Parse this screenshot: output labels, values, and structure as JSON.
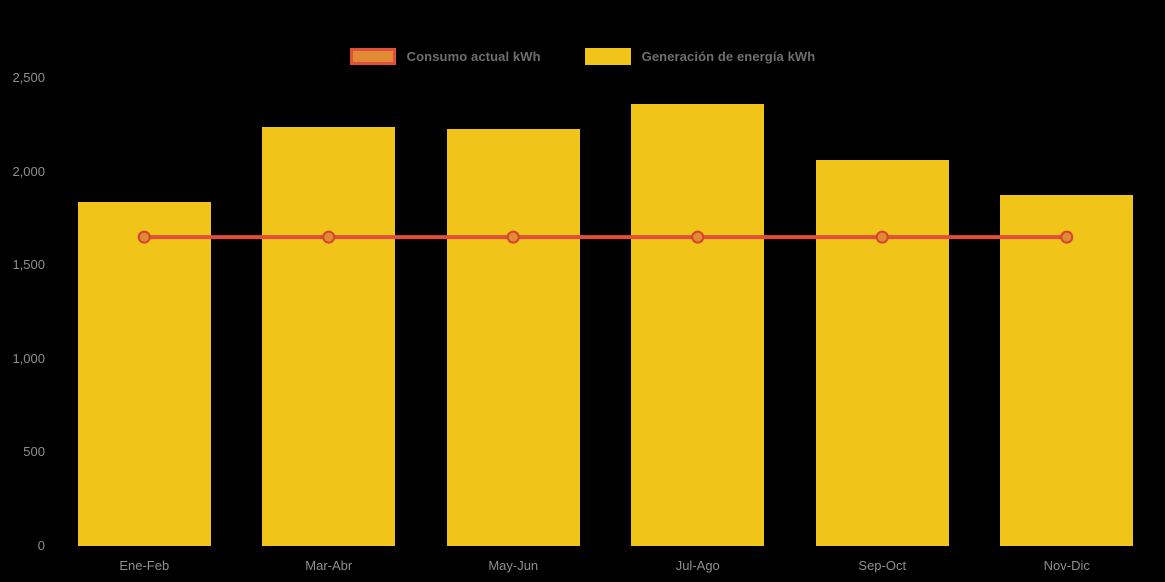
{
  "chart_data": {
    "type": "bar",
    "title": "",
    "categories": [
      "Ene-Feb",
      "Mar-Abr",
      "May-Jun",
      "Jul-Ago",
      "Sep-Oct",
      "Nov-Dic"
    ],
    "series": [
      {
        "name": "Consumo actual kWh",
        "type": "line",
        "values": [
          1650,
          1650,
          1650,
          1650,
          1650,
          1650
        ],
        "line_color": "#E14E3B",
        "marker_fill": "#E08A33",
        "marker_stroke": "#D8432F"
      },
      {
        "name": "Generación de energía kWh",
        "type": "bar",
        "values": [
          1840,
          2240,
          2230,
          2360,
          2060,
          1875
        ],
        "color": "#F0C419"
      }
    ],
    "xlabel": "",
    "ylabel": "",
    "ylim": [
      0,
      2500
    ],
    "y_tick_labels": [
      "2,500",
      "2,000",
      "1,500",
      "1,000",
      "500",
      "0"
    ],
    "grid": false,
    "legend_position": "top",
    "background_color": "#000000",
    "axis_label_color": "#8E8E8E",
    "legend_text_color": "#6E6E6E"
  }
}
